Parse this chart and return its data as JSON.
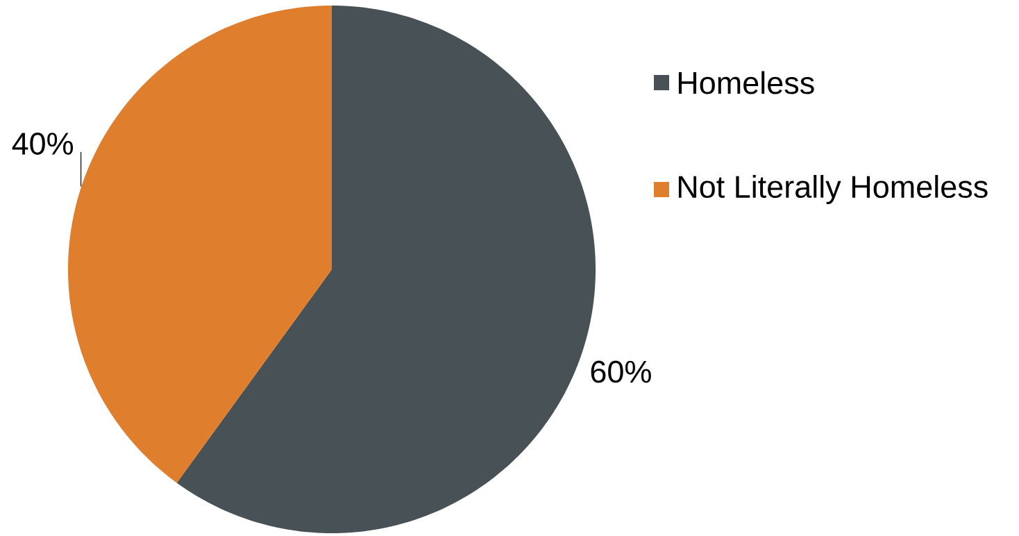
{
  "chart_data": {
    "type": "pie",
    "categories": [
      "Homeless",
      "Not Literally Homeless"
    ],
    "values": [
      60,
      40
    ],
    "colors": [
      "#485156",
      "#df7f2e"
    ],
    "value_labels": [
      "60%",
      "40%"
    ],
    "legend": "right"
  }
}
